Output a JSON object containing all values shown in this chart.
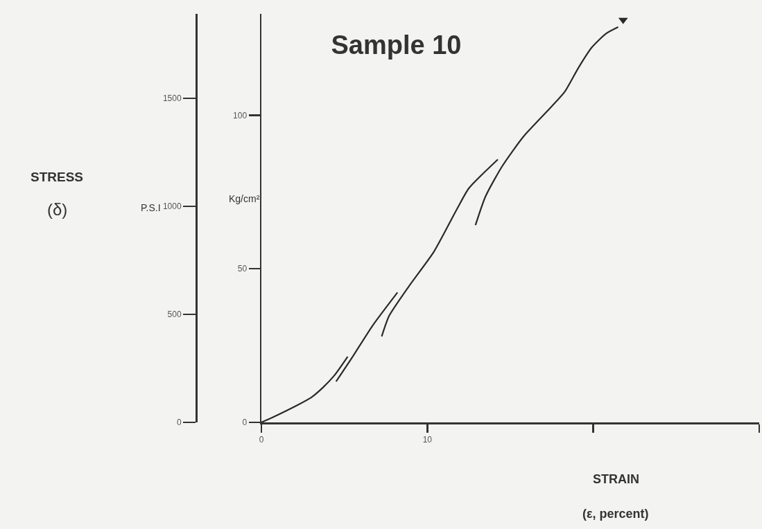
{
  "chart_data": {
    "type": "line",
    "title": "Sample 10",
    "xlabel": "STRAIN",
    "ylabel": "Kg/cm²",
    "y2label": "P.S.I",
    "annotations": [
      "STRESS",
      "(δ)",
      "(ε, percent)"
    ],
    "xlim": [
      0,
      30
    ],
    "xticks": [
      0,
      10,
      {
        "value": 20,
        "label": null
      },
      {
        "value": 30,
        "label": null
      }
    ],
    "ylim": [
      0,
      133
    ],
    "yticks": [
      0,
      50,
      100
    ],
    "y2lim": [
      0,
      1891
    ],
    "y2ticks": [
      0,
      500,
      1000,
      1500
    ],
    "series": [
      {
        "color": "#2a2a2a",
        "x": [
          0,
          0.7,
          2.2,
          3.0,
          3.7,
          4.4,
          5.2
        ],
        "values": [
          0,
          1.7,
          5.7,
          8.1,
          11.3,
          15.3,
          21.4
        ]
      },
      {
        "color": "#2a2a2a",
        "x": [
          4.5,
          5.5,
          6.7,
          8.2
        ],
        "values": [
          13.3,
          21.4,
          31.5,
          42.3
        ]
      },
      {
        "color": "#2a2a2a",
        "x": [
          7.25,
          7.7,
          8.9,
          10.4,
          11.8,
          12.5,
          14.25
        ],
        "values": [
          28.0,
          34.7,
          44.4,
          55.6,
          69.6,
          76.2,
          85.6
        ]
      },
      {
        "color": "#2a2a2a",
        "x": [
          12.9,
          13.5,
          14.5,
          15.8,
          17.5,
          18.3,
          19.1,
          19.9,
          20.75,
          21.5
        ],
        "values": [
          64.2,
          73.5,
          83.3,
          93.1,
          102.9,
          107.8,
          115.4,
          122.0,
          126.5,
          128.7
        ]
      },
      {
        "type": "scatter",
        "marker": "triangle",
        "color": "#2a2a2a",
        "x": [
          21.8
        ],
        "values": [
          131
        ]
      }
    ]
  }
}
